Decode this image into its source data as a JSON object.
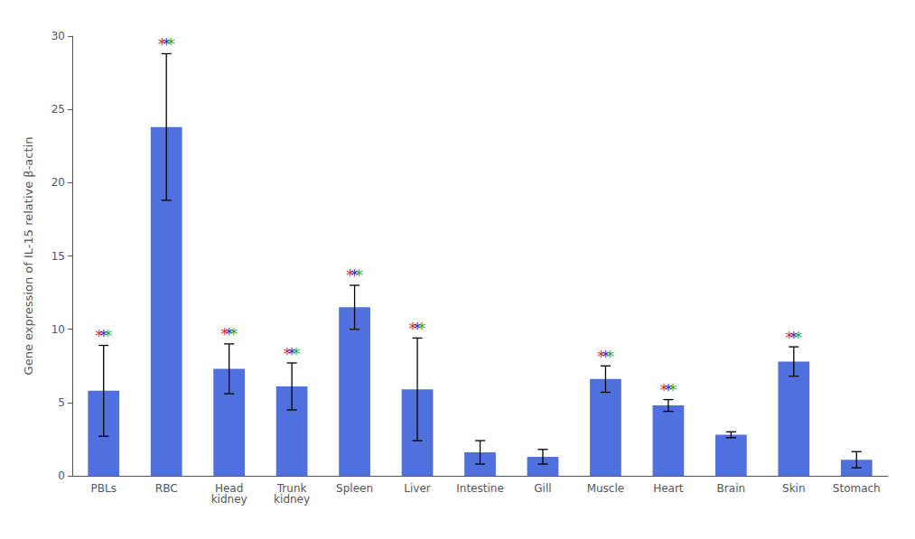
{
  "chart_data": {
    "type": "bar",
    "ylabel": "Gene expression of IL-15 relative β-actin",
    "categories": [
      "PBLs",
      "RBC",
      "Head\nkidney",
      "Trunk\nkidney",
      "Spleen",
      "Liver",
      "Intestine",
      "Gill",
      "Muscle",
      "Heart",
      "Brain",
      "Skin",
      "Stomach"
    ],
    "values": [
      5.8,
      23.8,
      7.3,
      6.1,
      11.5,
      5.9,
      1.6,
      1.3,
      6.6,
      4.8,
      2.8,
      7.8,
      1.1
    ],
    "errors": [
      3.1,
      5.0,
      1.7,
      1.6,
      1.5,
      3.5,
      0.8,
      0.5,
      0.9,
      0.4,
      0.2,
      1.0,
      0.55
    ],
    "annotations": [
      {
        "x": "PBLs",
        "text": "*",
        "colors": [
          "#cc0000",
          "#0000cc",
          "#009900"
        ]
      },
      {
        "x": "RBC",
        "text": "*",
        "colors": [
          "#cc0000",
          "#0000cc",
          "#009900"
        ]
      },
      {
        "x": "Head\nkidney",
        "text": "*",
        "colors": [
          "#cc0000",
          "#0000cc",
          "#009900"
        ]
      },
      {
        "x": "Trunk\nkidney",
        "text": "*",
        "colors": [
          "#cc0000",
          "#0000cc",
          "#009900"
        ]
      },
      {
        "x": "Spleen",
        "text": "*",
        "colors": [
          "#cc0000",
          "#0000cc",
          "#009900"
        ]
      },
      {
        "x": "Liver",
        "text": "*",
        "colors": [
          "#cc0000",
          "#0000cc",
          "#009900"
        ]
      },
      {
        "x": "Muscle",
        "text": "*",
        "colors": [
          "#cc0000",
          "#0000cc",
          "#009900"
        ]
      },
      {
        "x": "Heart",
        "text": "*",
        "colors": [
          "#cc0000",
          "#0000cc",
          "#009900"
        ]
      },
      {
        "x": "Skin",
        "text": "*",
        "colors": [
          "#cc0000",
          "#0000cc",
          "#009900"
        ]
      }
    ],
    "ylim": [
      0,
      30
    ],
    "yticks": [
      0,
      5,
      10,
      15,
      20,
      25,
      30
    ],
    "grid": false
  }
}
